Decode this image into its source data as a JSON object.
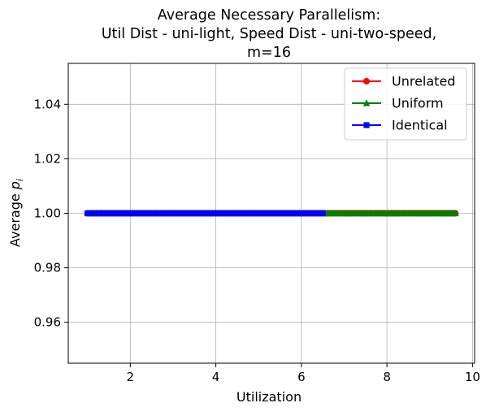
{
  "chart_data": {
    "type": "line",
    "title_lines": [
      "Average Necessary Parallelism:",
      "Util Dist - uni-light, Speed Dist - uni-two-speed,",
      "m=16"
    ],
    "xlabel": "Utilization",
    "ylabel_main": "Average ",
    "ylabel_symbol": "p",
    "ylabel_subscript": "i",
    "xlim": [
      0.55,
      10.05
    ],
    "ylim": [
      0.945,
      1.055
    ],
    "xticks": [
      2,
      4,
      6,
      8,
      10
    ],
    "xtick_labels": [
      "2",
      "4",
      "6",
      "8",
      "10"
    ],
    "yticks": [
      0.96,
      0.98,
      1.0,
      1.02,
      1.04
    ],
    "ytick_labels": [
      "0.96",
      "0.98",
      "1.00",
      "1.02",
      "1.04"
    ],
    "grid": true,
    "legend_position": "top-right",
    "series": [
      {
        "name": "Unrelated",
        "color": "#ff0000",
        "marker": "circle",
        "x_start": 1.0,
        "x_end": 9.6,
        "x_step": 0.05,
        "y": 1.0
      },
      {
        "name": "Uniform",
        "color": "#008000",
        "marker": "triangle",
        "x_start": 1.0,
        "x_end": 9.6,
        "x_step": 0.05,
        "y": 1.0
      },
      {
        "name": "Identical",
        "color": "#0000ff",
        "marker": "square",
        "x_start": 1.0,
        "x_end": 6.5,
        "x_step": 0.05,
        "y": 1.0
      }
    ]
  }
}
